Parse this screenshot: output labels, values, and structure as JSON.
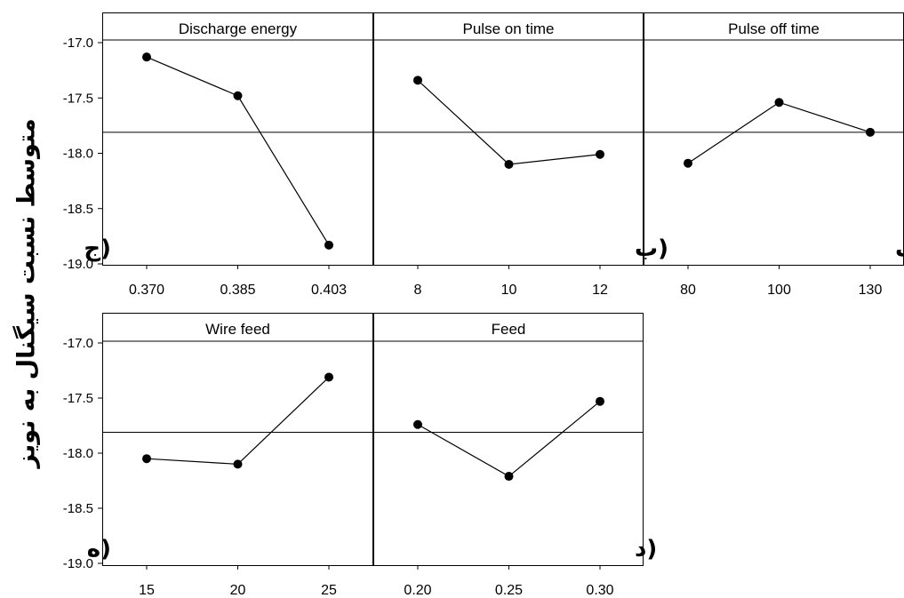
{
  "chart_data": {
    "type": "line",
    "ylabel": "متوسط نسبت سیگنال به نویز",
    "ylim": [
      -19.0,
      -17.0
    ],
    "yticks": [
      "-17.0",
      "-17.5",
      "-18.0",
      "-18.5",
      "-19.0"
    ],
    "grand_mean": -17.81,
    "panels": [
      {
        "title": "Discharge energy",
        "panel_label": "(ج",
        "categories": [
          "0.370",
          "0.385",
          "0.403"
        ],
        "values": [
          -17.13,
          -17.48,
          -18.83
        ]
      },
      {
        "title": "Pulse on time",
        "panel_label": "(ب",
        "categories": [
          "8",
          "10",
          "12"
        ],
        "values": [
          -17.34,
          -18.1,
          -18.01
        ]
      },
      {
        "title": "Pulse off time",
        "panel_label": "(الف",
        "categories": [
          "80",
          "100",
          "130"
        ],
        "values": [
          -18.09,
          -17.54,
          -17.81
        ]
      },
      {
        "title": "Wire feed",
        "panel_label": "(ه",
        "categories": [
          "15",
          "20",
          "25"
        ],
        "values": [
          -18.05,
          -18.1,
          -17.31
        ]
      },
      {
        "title": "Feed",
        "panel_label": "(د",
        "categories": [
          "0.20",
          "0.25",
          "0.30"
        ],
        "values": [
          -17.74,
          -18.21,
          -17.53
        ]
      }
    ]
  }
}
